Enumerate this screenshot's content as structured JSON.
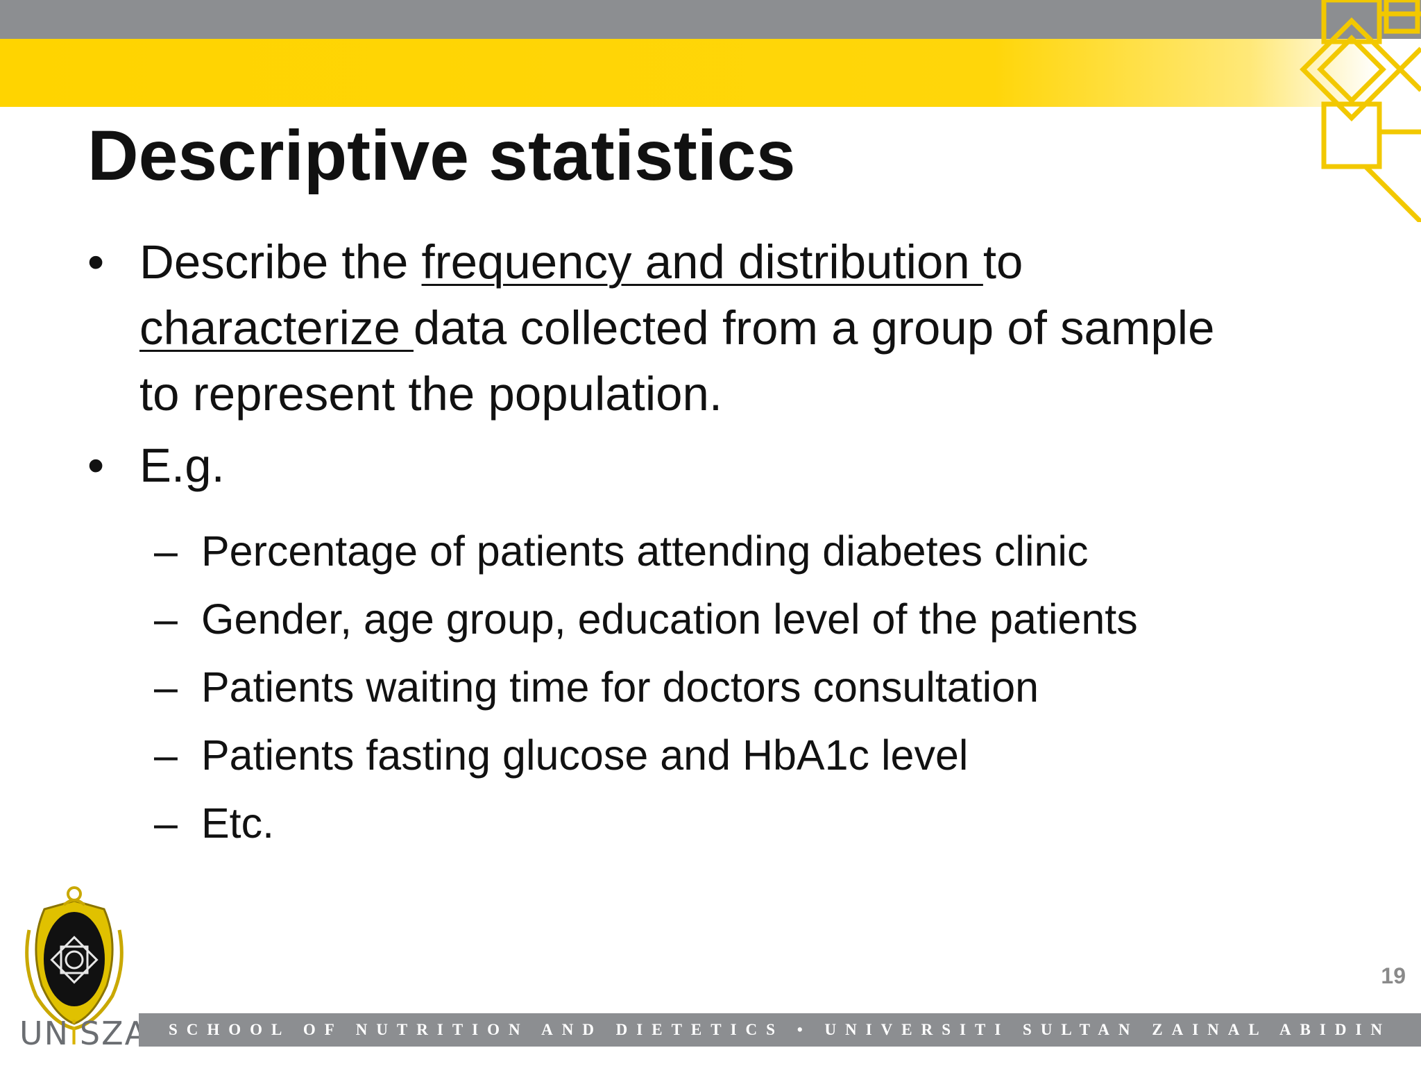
{
  "slide": {
    "title": "Descriptive statistics",
    "page_number": "19"
  },
  "bullets": [
    {
      "marker": "•",
      "pre": "Describe the ",
      "underline1": "frequency and distribution ",
      "mid": "to",
      "underline2": "characterize ",
      "post": "data collected from a group of sample to represent the population."
    },
    {
      "marker": "•",
      "text": "E.g."
    }
  ],
  "subitems": [
    {
      "marker": "–",
      "text": "Percentage of patients attending diabetes clinic"
    },
    {
      "marker": "–",
      "text": "Gender, age group, education level of the patients"
    },
    {
      "marker": "–",
      "text": "Patients waiting time for doctors consultation"
    },
    {
      "marker": "–",
      "text": "Patients fasting glucose and HbA1c level"
    },
    {
      "marker": "–",
      "text": "Etc."
    }
  ],
  "logo": {
    "text_pre": "UN",
    "text_i": "i",
    "text_post": "SZA"
  },
  "footer": {
    "text": "SCHOOL OF NUTRITION AND DIETETICS • UNIVERSITI SULTAN ZAINAL ABIDIN"
  },
  "colors": {
    "banner_gray": "#8c8e91",
    "banner_yellow": "#ffd400",
    "text": "#111111"
  }
}
